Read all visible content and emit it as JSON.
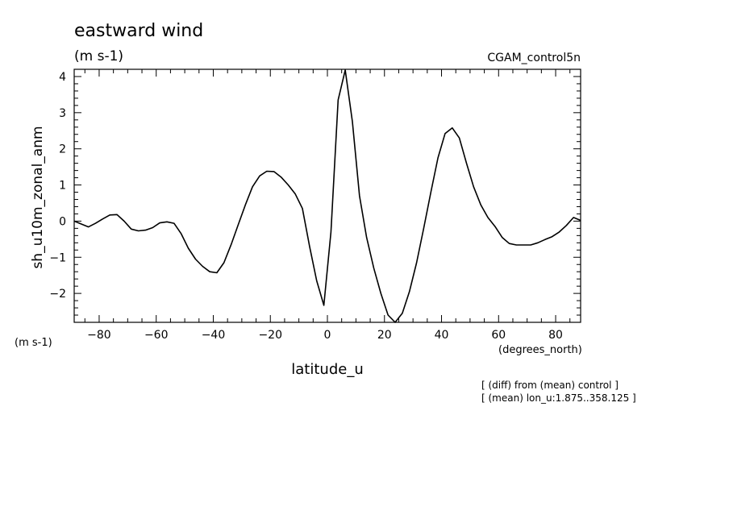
{
  "chart_data": {
    "type": "line",
    "title": "eastward wind",
    "units_label": "(m s-1)",
    "experiment": "CGAM_control5n",
    "ylabel": "sh_u10m_zonal_anm",
    "y_units": "(m s-1)",
    "xlabel": "latitude_u",
    "x_units": "(degrees_north)",
    "notes": [
      "[ (diff) from (mean) control ]",
      "[ (mean) lon_u:1.875..358.125 ]"
    ],
    "xlim": [
      -88.75,
      88.75
    ],
    "ylim": [
      -2.8,
      4.2
    ],
    "xticks": [
      -80,
      -60,
      -40,
      -20,
      0,
      20,
      40,
      60,
      80
    ],
    "yticks": [
      -2,
      -1,
      0,
      1,
      2,
      3,
      4
    ],
    "xtick_labels": [
      "−80",
      "−60",
      "−40",
      "−20",
      "0",
      "20",
      "40",
      "60",
      "80"
    ],
    "ytick_labels": [
      "−2",
      "−1",
      "0",
      "1",
      "2",
      "3",
      "4"
    ],
    "grid": false,
    "series": [
      {
        "color": "#000000",
        "x": [
          -88.75,
          -86.25,
          -83.75,
          -81.25,
          -78.75,
          -76.25,
          -73.75,
          -71.25,
          -68.75,
          -66.25,
          -63.75,
          -61.25,
          -58.75,
          -56.25,
          -53.75,
          -51.25,
          -48.75,
          -46.25,
          -43.75,
          -41.25,
          -38.75,
          -36.25,
          -33.75,
          -31.25,
          -28.75,
          -26.25,
          -23.75,
          -21.25,
          -18.75,
          -16.25,
          -13.75,
          -11.25,
          -8.75,
          -6.25,
          -3.75,
          -1.25,
          1.25,
          3.75,
          6.25,
          8.75,
          11.25,
          13.75,
          16.25,
          18.75,
          21.25,
          23.75,
          26.25,
          28.75,
          31.25,
          33.75,
          36.25,
          38.75,
          41.25,
          43.75,
          46.25,
          48.75,
          51.25,
          53.75,
          56.25,
          58.75,
          61.25,
          63.75,
          66.25,
          68.75,
          71.25,
          73.75,
          76.25,
          78.75,
          81.25,
          83.75,
          86.25,
          88.75
        ],
        "y": [
          0.0,
          -0.08,
          -0.16,
          -0.06,
          0.06,
          0.17,
          0.18,
          0.0,
          -0.22,
          -0.27,
          -0.25,
          -0.18,
          -0.05,
          -0.02,
          -0.06,
          -0.35,
          -0.75,
          -1.05,
          -1.25,
          -1.4,
          -1.43,
          -1.15,
          -0.65,
          -0.1,
          0.45,
          0.95,
          1.25,
          1.38,
          1.37,
          1.22,
          1.0,
          0.75,
          0.35,
          -0.7,
          -1.65,
          -2.33,
          -0.3,
          3.35,
          4.18,
          2.75,
          0.7,
          -0.45,
          -1.3,
          -2.0,
          -2.6,
          -2.8,
          -2.55,
          -1.95,
          -1.15,
          -0.2,
          0.8,
          1.75,
          2.42,
          2.58,
          2.3,
          1.6,
          0.95,
          0.45,
          0.1,
          -0.15,
          -0.45,
          -0.62,
          -0.66,
          -0.66,
          -0.66,
          -0.6,
          -0.51,
          -0.43,
          -0.3,
          -0.12,
          0.1,
          0.02
        ]
      }
    ]
  }
}
